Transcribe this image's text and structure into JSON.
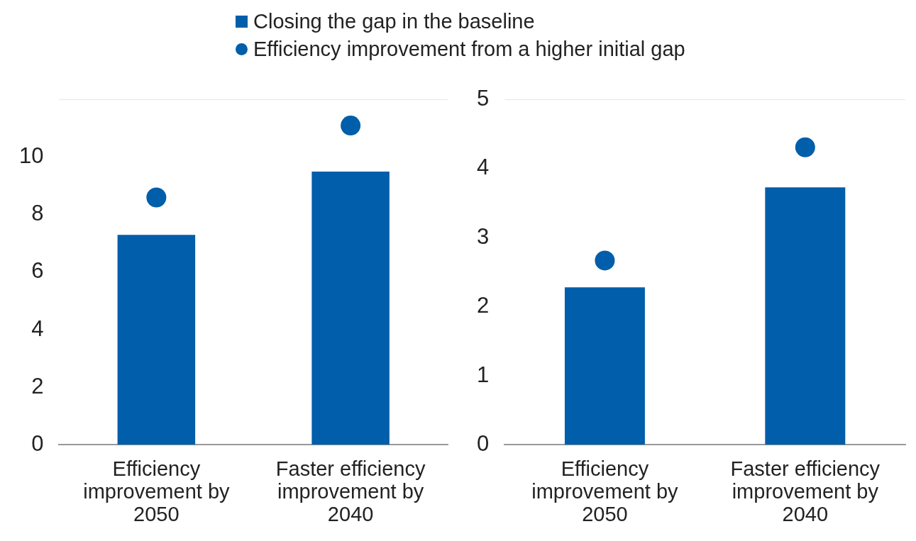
{
  "chart_data": [
    {
      "type": "bar",
      "categories": [
        "Efficiency improvement by 2050",
        "Faster efficiency improvement by 2040"
      ],
      "ylim": [
        0,
        12
      ],
      "yticks": [
        0,
        2,
        4,
        6,
        8,
        10
      ],
      "grid": false,
      "legend": "top",
      "series": [
        {
          "name": "Closing the gap in the baseline",
          "color": "#005eaa",
          "values": [
            7.3,
            9.5
          ]
        },
        {
          "name": "Efficiency improvement from a higher initial gap",
          "type": "scatter",
          "marker": "circle",
          "color": "#005eaa",
          "x": [
            "Efficiency improvement by 2050",
            "Faster efficiency improvement by 2040"
          ],
          "values": [
            8.6,
            11.1
          ]
        }
      ]
    },
    {
      "type": "bar",
      "categories": [
        "Efficiency improvement by 2050",
        "Faster efficiency improvement by 2040"
      ],
      "ylim": [
        0,
        5
      ],
      "yticks": [
        0,
        1,
        2,
        3,
        4,
        5
      ],
      "grid": false,
      "series": [
        {
          "color": "#005eaa",
          "values": [
            2.28,
            3.73
          ]
        },
        {
          "type": "scatter",
          "marker": "circle",
          "color": "#005eaa",
          "x": [
            "Efficiency improvement by 2050",
            "Faster efficiency improvement by 2040"
          ],
          "values": [
            2.67,
            4.31
          ]
        }
      ]
    }
  ]
}
